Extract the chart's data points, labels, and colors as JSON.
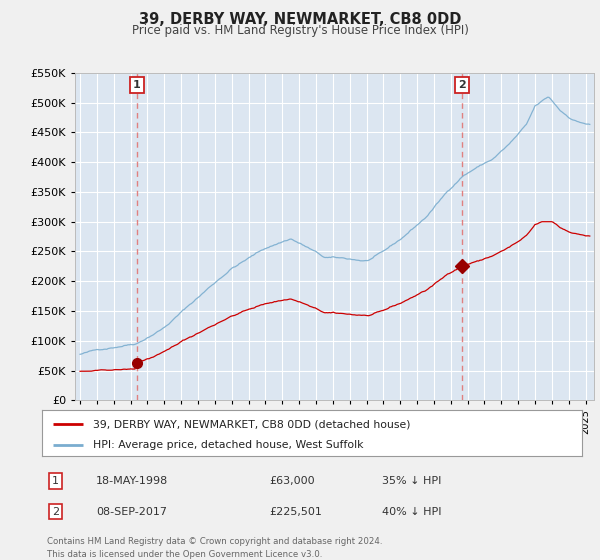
{
  "title": "39, DERBY WAY, NEWMARKET, CB8 0DD",
  "subtitle": "Price paid vs. HM Land Registry's House Price Index (HPI)",
  "legend_line1": "39, DERBY WAY, NEWMARKET, CB8 0DD (detached house)",
  "legend_line2": "HPI: Average price, detached house, West Suffolk",
  "annotation1": {
    "num": "1",
    "date": "18-MAY-1998",
    "price": "£63,000",
    "pct": "35% ↓ HPI",
    "year": 1998.38,
    "value": 63000
  },
  "annotation2": {
    "num": "2",
    "date": "08-SEP-2017",
    "price": "£225,501",
    "pct": "40% ↓ HPI",
    "year": 2017.69,
    "value": 225501
  },
  "footnote1": "Contains HM Land Registry data © Crown copyright and database right 2024.",
  "footnote2": "This data is licensed under the Open Government Licence v3.0.",
  "ylim": [
    0,
    550000
  ],
  "yticks": [
    0,
    50000,
    100000,
    150000,
    200000,
    250000,
    300000,
    350000,
    400000,
    450000,
    500000,
    550000
  ],
  "xlim_start": 1995.0,
  "xlim_end": 2025.5,
  "fig_bg_color": "#f0f0f0",
  "plot_bg_color": "#dce6f1",
  "grid_color": "#ffffff",
  "red_line_color": "#cc0000",
  "blue_line_color": "#7aadcf",
  "marker_color": "#990000",
  "dashed_line_color": "#e08080",
  "box_edge_color": "#cc2222"
}
